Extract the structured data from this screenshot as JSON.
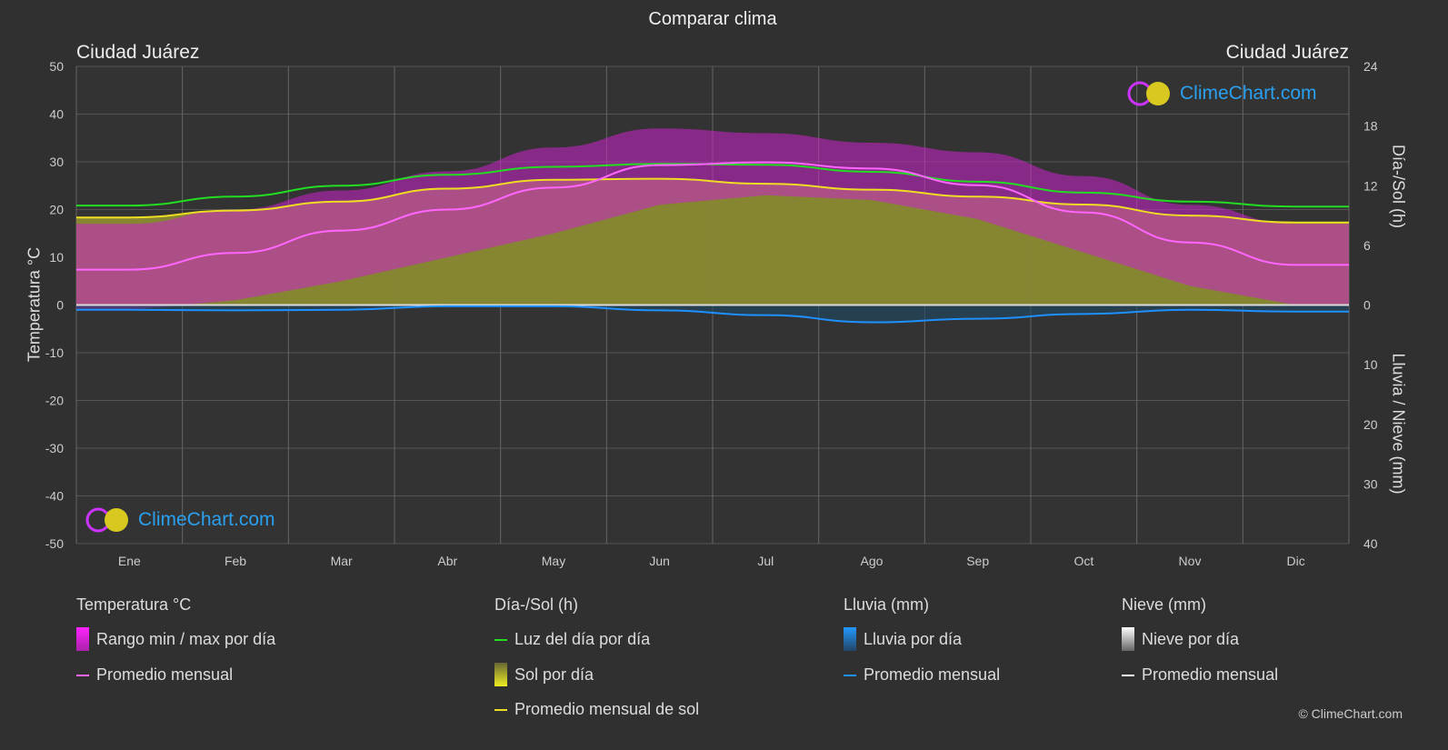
{
  "title": "Comparar clima",
  "city_left": "Ciudad Juárez",
  "city_right": "Ciudad Juárez",
  "logo_text": "ClimeChart.com",
  "copyright": "© ClimeChart.com",
  "legend": {
    "temp": {
      "header": "Temperatura °C",
      "range": "Rango min / max por día",
      "avg": "Promedio mensual"
    },
    "sun": {
      "header": "Día-/Sol (h)",
      "daylight": "Luz del día por día",
      "sun": "Sol por día",
      "avg": "Promedio mensual de sol"
    },
    "rain": {
      "header": "Lluvia (mm)",
      "rain": "Lluvia por día",
      "avg": "Promedio mensual"
    },
    "snow": {
      "header": "Nieve (mm)",
      "snow": "Nieve por día",
      "avg": "Promedio mensual"
    }
  },
  "colors": {
    "temp_avg": "#ff66ff",
    "daylight": "#22dd22",
    "sun": "#eedd22",
    "rain": "#1e90ff",
    "snow": "#ffffff",
    "range": "#cc22cc",
    "sun_fill": "#8a8a33"
  },
  "chart_data": {
    "type": "line",
    "title": "Comparar clima",
    "categories": [
      "Ene",
      "Feb",
      "Mar",
      "Abr",
      "May",
      "Jun",
      "Jul",
      "Ago",
      "Sep",
      "Oct",
      "Nov",
      "Dic"
    ],
    "ylabel_left": "Temperatura °C",
    "ylabel_right_top": "Día-/Sol (h)",
    "ylabel_right_bottom": "Lluvia / Nieve (mm)",
    "ylim_left": [
      -50,
      50
    ],
    "yticks_left": [
      "50",
      "40",
      "30",
      "20",
      "10",
      "0",
      "-10",
      "-20",
      "-30",
      "-40",
      "-50"
    ],
    "yticks_right_sun": [
      "24",
      "18",
      "12",
      "6",
      "0"
    ],
    "yticks_right_rain": [
      "10",
      "20",
      "30",
      "40"
    ],
    "series": [
      {
        "name": "Promedio mensual temperatura",
        "unit": "°C",
        "values": [
          7.4,
          10.9,
          15.6,
          20.0,
          24.6,
          29.3,
          29.9,
          28.6,
          25.1,
          19.4,
          13.1,
          8.4
        ]
      },
      {
        "name": "Temperatura max (aprox.)",
        "unit": "°C",
        "values": [
          17,
          20,
          24,
          28,
          33,
          37,
          36,
          34,
          32,
          27,
          21,
          17
        ]
      },
      {
        "name": "Temperatura min (aprox.)",
        "unit": "°C",
        "values": [
          -1,
          1,
          5,
          10,
          15,
          21,
          23,
          22,
          18,
          11,
          4,
          0
        ]
      },
      {
        "name": "Luz del día",
        "unit": "h",
        "values": [
          10.0,
          10.9,
          12.0,
          13.1,
          13.9,
          14.2,
          14.1,
          13.4,
          12.4,
          11.3,
          10.4,
          9.9
        ]
      },
      {
        "name": "Promedio mensual de sol",
        "unit": "h",
        "values": [
          8.8,
          9.5,
          10.4,
          11.7,
          12.6,
          12.7,
          12.2,
          11.6,
          10.9,
          10.1,
          9.0,
          8.3
        ]
      },
      {
        "name": "Lluvia promedio mensual",
        "unit": "mm",
        "values": [
          0.8,
          0.9,
          0.8,
          0.2,
          0.2,
          0.9,
          1.7,
          2.9,
          2.3,
          1.5,
          0.8,
          1.1
        ]
      }
    ]
  }
}
